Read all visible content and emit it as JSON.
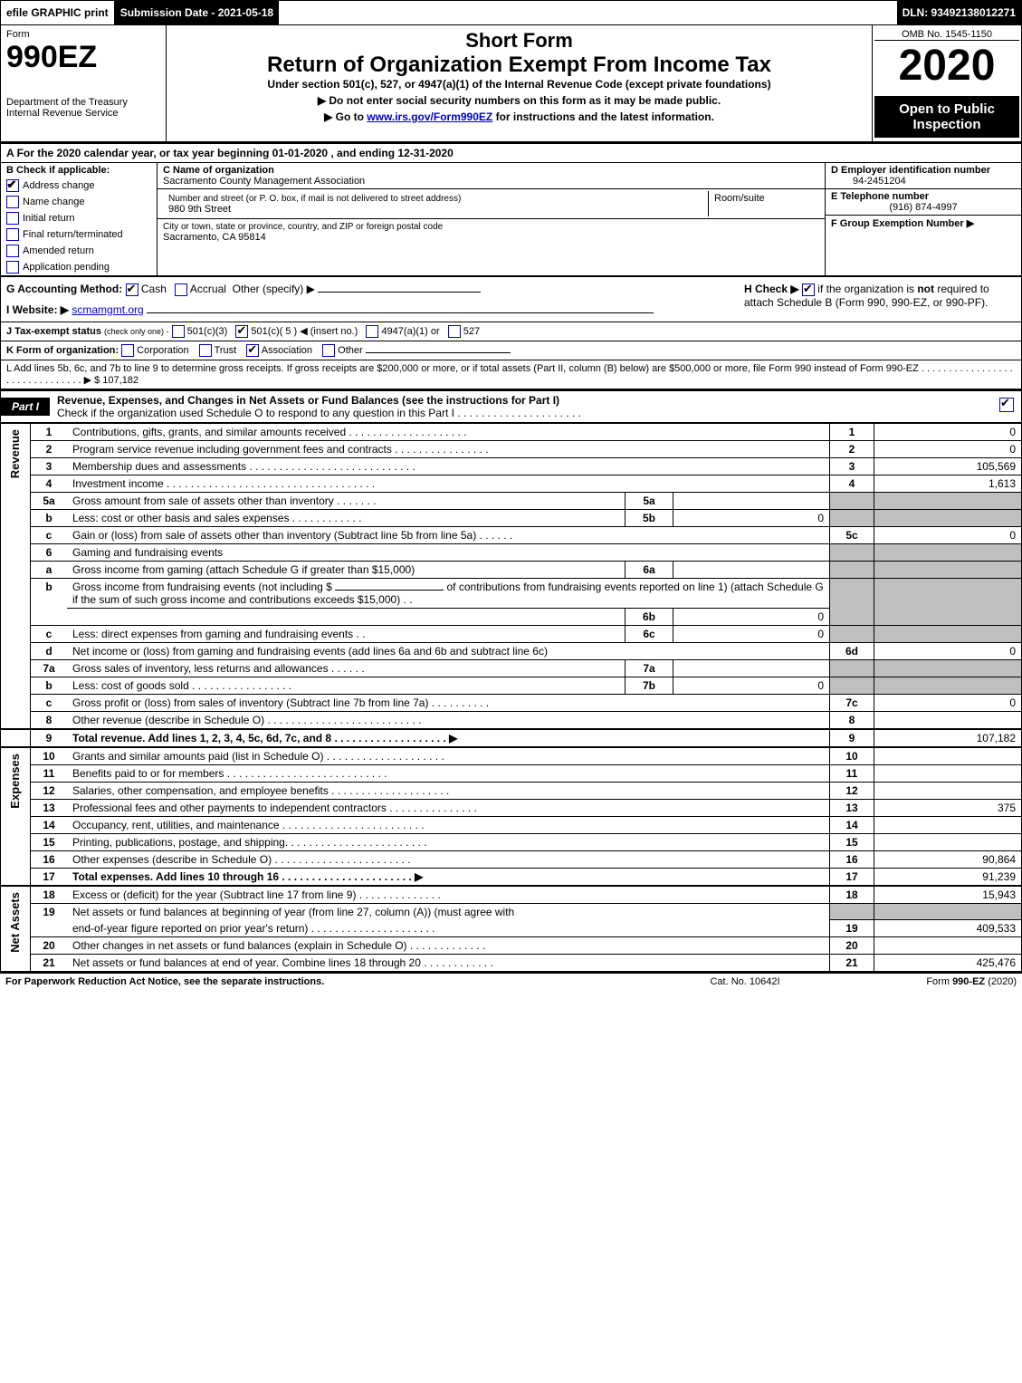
{
  "colors": {
    "black": "#000000",
    "white": "#ffffff",
    "grey": "#bfbfbf",
    "link": "#0000cc"
  },
  "top": {
    "efile": "efile GRAPHIC print",
    "sub_date": "Submission Date - 2021-05-18",
    "dln": "DLN: 93492138012271"
  },
  "header": {
    "form_word": "Form",
    "form_code": "990EZ",
    "dept": "Department of the Treasury",
    "irs": "Internal Revenue Service",
    "title1": "Short Form",
    "title2": "Return of Organization Exempt From Income Tax",
    "subtitle": "Under section 501(c), 527, or 4947(a)(1) of the Internal Revenue Code (except private foundations)",
    "note1": "▶ Do not enter social security numbers on this form as it may be made public.",
    "note2_pre": "▶ Go to ",
    "note2_link": "www.irs.gov/Form990EZ",
    "note2_post": " for instructions and the latest information.",
    "omb": "OMB No. 1545-1150",
    "year": "2020",
    "open": "Open to Public Inspection"
  },
  "A": "For the 2020 calendar year, or tax year beginning 01-01-2020 , and ending 12-31-2020",
  "B": {
    "label": "B  Check if applicable:",
    "addr": "Address change",
    "name": "Name change",
    "init": "Initial return",
    "final": "Final return/terminated",
    "amend": "Amended return",
    "app": "Application pending"
  },
  "C": {
    "label": "C Name of organization",
    "name": "Sacramento County Management Association",
    "street_label": "Number and street (or P. O. box, if mail is not delivered to street address)",
    "room_label": "Room/suite",
    "street": "980 9th Street",
    "city_label": "City or town, state or province, country, and ZIP or foreign postal code",
    "city": "Sacramento, CA  95814"
  },
  "D": {
    "label": "D Employer identification number",
    "value": "94-2451204"
  },
  "E": {
    "label": "E Telephone number",
    "value": "(916) 874-4997"
  },
  "F": {
    "label": "F Group Exemption Number   ▶",
    "value": ""
  },
  "G": {
    "label": "G Accounting Method:",
    "cash": "Cash",
    "accr": "Accrual",
    "other": "Other (specify) ▶"
  },
  "H": {
    "label": "H  Check ▶",
    "text": "if the organization is not required to attach Schedule B (Form 990, 990-EZ, or 990-PF)."
  },
  "I": {
    "label": "I Website: ▶",
    "value": "scmamgmt.org"
  },
  "J": {
    "label": "J Tax-exempt status",
    "hint": "(check only one) -",
    "o1": "501(c)(3)",
    "o2": "501(c)( 5 ) ◀ (insert no.)",
    "o3": "4947(a)(1) or",
    "o4": "527"
  },
  "K": {
    "label": "K Form of organization:",
    "corp": "Corporation",
    "trust": "Trust",
    "assoc": "Association",
    "other": "Other"
  },
  "L": {
    "text": "L Add lines 5b, 6c, and 7b to line 9 to determine gross receipts. If gross receipts are $200,000 or more, or if total assets (Part II, column (B) below) are $500,000 or more, file Form 990 instead of Form 990-EZ . . . . . . . . . . . . . . . . . . . . . . . . . . . . . . . ▶",
    "value": "$ 107,182"
  },
  "part1": {
    "label": "Part I",
    "title": "Revenue, Expenses, and Changes in Net Assets or Fund Balances (see the instructions for Part I)",
    "sub": "Check if the organization used Schedule O to respond to any question in this Part I . . . . . . . . . . . . . . . . . . . . ."
  },
  "side": {
    "rev": "Revenue",
    "exp": "Expenses",
    "net": "Net Assets"
  },
  "lines": {
    "l1": {
      "n": "1",
      "d": "Contributions, gifts, grants, and similar amounts received . . . . . . . . . . . . . . . . . . . .",
      "v": "0"
    },
    "l2": {
      "n": "2",
      "d": "Program service revenue including government fees and contracts . . . . . . . . . . . . . . . .",
      "v": "0"
    },
    "l3": {
      "n": "3",
      "d": "Membership dues and assessments . . . . . . . . . . . . . . . . . . . . . . . . . . . .",
      "v": "105,569"
    },
    "l4": {
      "n": "4",
      "d": "Investment income . . . . . . . . . . . . . . . . . . . . . . . . . . . . . . . . . . .",
      "v": "1,613"
    },
    "l5a": {
      "n": "5a",
      "d": "Gross amount from sale of assets other than inventory . . . . . . .",
      "in": "5a",
      "iv": ""
    },
    "l5b": {
      "n": "b",
      "d": "Less: cost or other basis and sales expenses . . . . . . . . . . . .",
      "in": "5b",
      "iv": "0"
    },
    "l5c": {
      "n": "c",
      "d": "Gain or (loss) from sale of assets other than inventory (Subtract line 5b from line 5a) . . . . . .",
      "nn": "5c",
      "v": "0"
    },
    "l6": {
      "n": "6",
      "d": "Gaming and fundraising events"
    },
    "l6a": {
      "n": "a",
      "d": "Gross income from gaming (attach Schedule G if greater than $15,000)",
      "in": "6a",
      "iv": ""
    },
    "l6b": {
      "n": "b",
      "d1": "Gross income from fundraising events (not including $",
      "d2": "of contributions from fundraising events reported on line 1) (attach Schedule G if the sum of such gross income and contributions exceeds $15,000)    . .",
      "in": "6b",
      "iv": "0"
    },
    "l6c": {
      "n": "c",
      "d": "Less: direct expenses from gaming and fundraising events       . .",
      "in": "6c",
      "iv": "0"
    },
    "l6d": {
      "n": "d",
      "d": "Net income or (loss) from gaming and fundraising events (add lines 6a and 6b and subtract line 6c)",
      "nn": "6d",
      "v": "0"
    },
    "l7a": {
      "n": "7a",
      "d": "Gross sales of inventory, less returns and allowances . . . . . .",
      "in": "7a",
      "iv": ""
    },
    "l7b": {
      "n": "b",
      "d": "Less: cost of goods sold       . . . . . . . . . . . . . . . . .",
      "in": "7b",
      "iv": "0"
    },
    "l7c": {
      "n": "c",
      "d": "Gross profit or (loss) from sales of inventory (Subtract line 7b from line 7a) . . . . . . . . . .",
      "nn": "7c",
      "v": "0"
    },
    "l8": {
      "n": "8",
      "d": "Other revenue (describe in Schedule O) . . . . . . . . . . . . . . . . . . . . . . . . . .",
      "v": ""
    },
    "l9": {
      "n": "9",
      "d": "Total revenue. Add lines 1, 2, 3, 4, 5c, 6d, 7c, and 8  . . . . . . . . . . . . . . . . . . .   ▶",
      "v": "107,182"
    },
    "l10": {
      "n": "10",
      "d": "Grants and similar amounts paid (list in Schedule O) . . . . . . . . . . . . . . . . . . . .",
      "v": ""
    },
    "l11": {
      "n": "11",
      "d": "Benefits paid to or for members    . . . . . . . . . . . . . . . . . . . . . . . . . . .",
      "v": ""
    },
    "l12": {
      "n": "12",
      "d": "Salaries, other compensation, and employee benefits . . . . . . . . . . . . . . . . . . . .",
      "v": ""
    },
    "l13": {
      "n": "13",
      "d": "Professional fees and other payments to independent contractors . . . . . . . . . . . . . . .",
      "v": "375"
    },
    "l14": {
      "n": "14",
      "d": "Occupancy, rent, utilities, and maintenance . . . . . . . . . . . . . . . . . . . . . . . .",
      "v": ""
    },
    "l15": {
      "n": "15",
      "d": "Printing, publications, postage, and shipping. . . . . . . . . . . . . . . . . . . . . . . .",
      "v": ""
    },
    "l16": {
      "n": "16",
      "d": "Other expenses (describe in Schedule O)    . . . . . . . . . . . . . . . . . . . . . . .",
      "v": "90,864"
    },
    "l17": {
      "n": "17",
      "d": "Total expenses. Add lines 10 through 16    . . . . . . . . . . . . . . . . . . . . . .   ▶",
      "v": "91,239"
    },
    "l18": {
      "n": "18",
      "d": "Excess or (deficit) for the year (Subtract line 17 from line 9)       . . . . . . . . . . . . . .",
      "v": "15,943"
    },
    "l19": {
      "n": "19",
      "d1": "Net assets or fund balances at beginning of year (from line 27, column (A)) (must agree with",
      "d2": "end-of-year figure reported on prior year's return) . . . . . . . . . . . . . . . . . . . . .",
      "v": "409,533"
    },
    "l20": {
      "n": "20",
      "d": "Other changes in net assets or fund balances (explain in Schedule O) . . . . . . . . . . . . .",
      "v": ""
    },
    "l21": {
      "n": "21",
      "d": "Net assets or fund balances at end of year. Combine lines 18 through 20 . . . . . . . . . . . .",
      "v": "425,476"
    }
  },
  "footer": {
    "f1": "For Paperwork Reduction Act Notice, see the separate instructions.",
    "f2": "Cat. No. 10642I",
    "f3": "Form 990-EZ (2020)"
  }
}
